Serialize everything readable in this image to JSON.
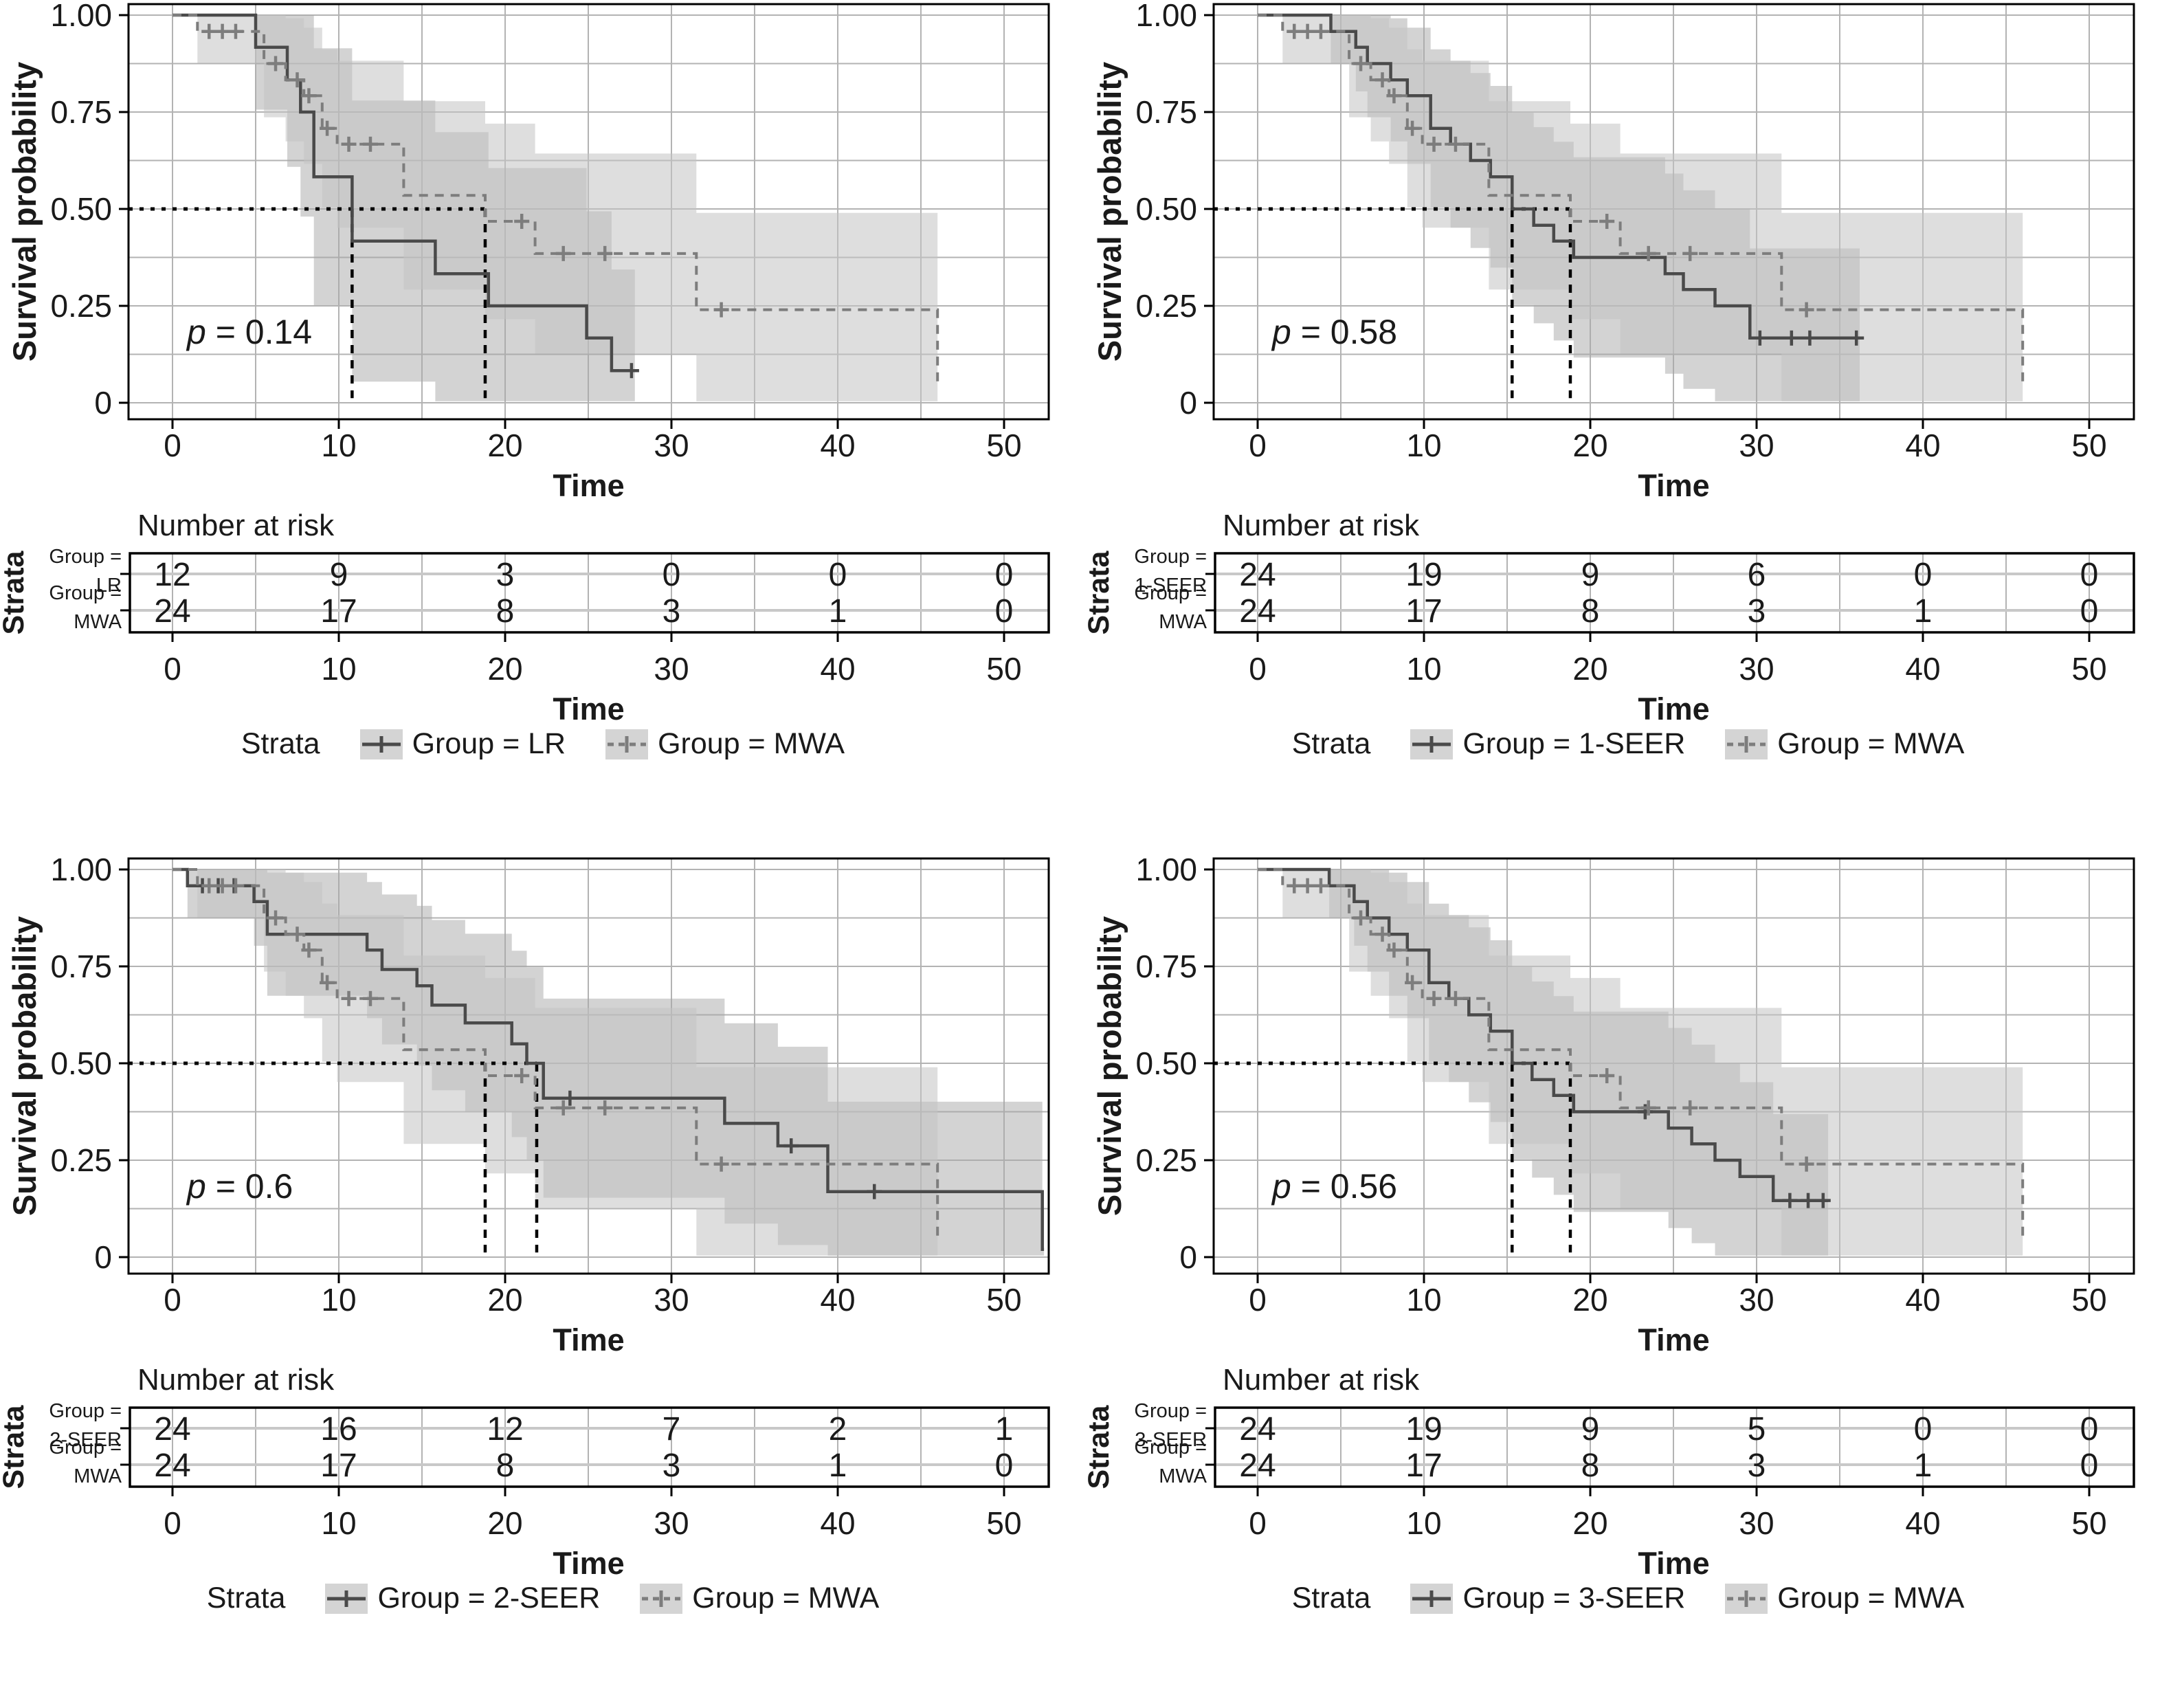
{
  "shared": {
    "ylabel": "Survival probability",
    "xlabel": "Time",
    "risk_title": "Number at risk",
    "strata_axis": "Strata",
    "legend_title": "Strata",
    "x_ticks": [
      0,
      10,
      20,
      30,
      40,
      50
    ],
    "y_ticks": [
      {
        "v": 1,
        "label": "1.00"
      },
      {
        "v": 0.75,
        "label": "0.75"
      },
      {
        "v": 0.5,
        "label": "0.50"
      },
      {
        "v": 0.25,
        "label": "0.25"
      },
      {
        "v": 0,
        "label": "0"
      }
    ],
    "xlim": [
      0,
      52.7
    ],
    "ylim": [
      0,
      1
    ],
    "colors": {
      "solid_line": "#4a4a4a",
      "dashed_line": "#7d7d7d",
      "solid_band": "#a8a8a8",
      "dashed_band": "#c2c2c2",
      "grid": "#b3b3b3",
      "median": "#000000"
    }
  },
  "chart_data": [
    {
      "id": "top-left",
      "type": "line",
      "subtype": "kaplan-meier-survival",
      "p_label": {
        "var": "p",
        "rest": " = 0.14"
      },
      "series": [
        {
          "name": "Group = LR",
          "n": 12,
          "style": "solid",
          "median_time": 10.8,
          "end_time": 27.8,
          "steps": [
            [
              0,
              1
            ],
            [
              5,
              0.917
            ],
            [
              6.9,
              0.833
            ],
            [
              7.7,
              0.75
            ],
            [
              8.5,
              0.583
            ],
            [
              10.8,
              0.417
            ],
            [
              15.8,
              0.333
            ],
            [
              19,
              0.25
            ],
            [
              24.9,
              0.167
            ],
            [
              26.4,
              0.083
            ]
          ],
          "censors": [
            [
              27.6,
              0.083
            ]
          ]
        },
        {
          "name": "Group = MWA",
          "n": 24,
          "style": "dashed",
          "median_time": 18.8,
          "end_time": 46,
          "terminal_drop_to": 0.04,
          "steps": [
            [
              0,
              1
            ],
            [
              1.5,
              0.958
            ],
            [
              5.5,
              0.875
            ],
            [
              6.8,
              0.833
            ],
            [
              7.9,
              0.792
            ],
            [
              9,
              0.708
            ],
            [
              9.9,
              0.667
            ],
            [
              13.9,
              0.535
            ],
            [
              18.8,
              0.468
            ],
            [
              21.8,
              0.385
            ],
            [
              31.5,
              0.24
            ]
          ],
          "censors": [
            [
              2.2,
              0.958
            ],
            [
              3,
              0.958
            ],
            [
              3.8,
              0.958
            ],
            [
              6.2,
              0.875
            ],
            [
              7.5,
              0.833
            ],
            [
              8.2,
              0.792
            ],
            [
              9.3,
              0.708
            ],
            [
              10.6,
              0.667
            ],
            [
              11.9,
              0.667
            ],
            [
              21,
              0.468
            ],
            [
              23.5,
              0.385
            ],
            [
              26,
              0.385
            ],
            [
              33,
              0.24
            ]
          ]
        }
      ],
      "median_ref_y": 0.5,
      "number_at_risk": {
        "times": [
          0,
          10,
          20,
          30,
          40,
          50
        ],
        "rows": [
          {
            "label": [
              "Group =",
              "LR"
            ],
            "counts": [
              12,
              9,
              3,
              0,
              0,
              0
            ]
          },
          {
            "label": [
              "Group =",
              "MWA"
            ],
            "counts": [
              24,
              17,
              8,
              3,
              1,
              0
            ]
          }
        ]
      }
    },
    {
      "id": "top-right",
      "type": "line",
      "subtype": "kaplan-meier-survival",
      "p_label": {
        "var": "p",
        "rest": " = 0.58"
      },
      "series": [
        {
          "name": "Group = 1-SEER",
          "n": 24,
          "style": "solid",
          "median_time": 15.3,
          "end_time": 36.2,
          "steps": [
            [
              0,
              1
            ],
            [
              4.4,
              0.958
            ],
            [
              5.9,
              0.917
            ],
            [
              6.6,
              0.875
            ],
            [
              8,
              0.833
            ],
            [
              9,
              0.792
            ],
            [
              10.4,
              0.708
            ],
            [
              11.6,
              0.667
            ],
            [
              12.8,
              0.625
            ],
            [
              14,
              0.583
            ],
            [
              15.3,
              0.5
            ],
            [
              16.6,
              0.458
            ],
            [
              17.8,
              0.417
            ],
            [
              19,
              0.375
            ],
            [
              24.5,
              0.333
            ],
            [
              25.6,
              0.292
            ],
            [
              27.5,
              0.25
            ],
            [
              29.6,
              0.167
            ]
          ],
          "censors": [
            [
              30.2,
              0.167
            ],
            [
              32.1,
              0.167
            ],
            [
              33.2,
              0.167
            ],
            [
              36,
              0.167
            ]
          ]
        },
        {
          "name": "Group = MWA",
          "n": 24,
          "style": "dashed",
          "median_time": 18.8,
          "end_time": 46,
          "terminal_drop_to": 0.04,
          "steps": [
            [
              0,
              1
            ],
            [
              1.5,
              0.958
            ],
            [
              5.5,
              0.875
            ],
            [
              6.8,
              0.833
            ],
            [
              7.9,
              0.792
            ],
            [
              9,
              0.708
            ],
            [
              9.9,
              0.667
            ],
            [
              13.9,
              0.535
            ],
            [
              18.8,
              0.468
            ],
            [
              21.8,
              0.385
            ],
            [
              31.5,
              0.24
            ]
          ],
          "censors": [
            [
              2.2,
              0.958
            ],
            [
              3,
              0.958
            ],
            [
              3.8,
              0.958
            ],
            [
              6.2,
              0.875
            ],
            [
              7.5,
              0.833
            ],
            [
              8.2,
              0.792
            ],
            [
              9.3,
              0.708
            ],
            [
              10.6,
              0.667
            ],
            [
              11.9,
              0.667
            ],
            [
              21,
              0.468
            ],
            [
              23.5,
              0.385
            ],
            [
              26,
              0.385
            ],
            [
              33,
              0.24
            ]
          ]
        }
      ],
      "median_ref_y": 0.5,
      "number_at_risk": {
        "times": [
          0,
          10,
          20,
          30,
          40,
          50
        ],
        "rows": [
          {
            "label": [
              "Group =",
              "1-SEER"
            ],
            "counts": [
              24,
              19,
              9,
              6,
              0,
              0
            ]
          },
          {
            "label": [
              "Group =",
              "MWA"
            ],
            "counts": [
              24,
              17,
              8,
              3,
              1,
              0
            ]
          }
        ]
      }
    },
    {
      "id": "bottom-left",
      "type": "line",
      "subtype": "kaplan-meier-survival",
      "p_label": {
        "var": "p",
        "rest": " = 0.6"
      },
      "series": [
        {
          "name": "Group = 2-SEER",
          "n": 24,
          "style": "solid",
          "median_time": 21.9,
          "end_time": 52.4,
          "steps": [
            [
              0,
              1
            ],
            [
              0.9,
              0.958
            ],
            [
              4.9,
              0.917
            ],
            [
              5.7,
              0.833
            ],
            [
              11.7,
              0.792
            ],
            [
              12.6,
              0.742
            ],
            [
              14.7,
              0.7
            ],
            [
              15.6,
              0.65
            ],
            [
              17.6,
              0.604
            ],
            [
              20.4,
              0.55
            ],
            [
              21.3,
              0.5
            ],
            [
              22.3,
              0.41
            ],
            [
              33.2,
              0.345
            ],
            [
              36.4,
              0.287
            ],
            [
              39.4,
              0.169
            ],
            [
              52.3,
              0.02
            ]
          ],
          "censors": [
            [
              1.8,
              0.958
            ],
            [
              2.75,
              0.958
            ],
            [
              3.7,
              0.958
            ],
            [
              23.9,
              0.41
            ],
            [
              37.2,
              0.287
            ],
            [
              42.2,
              0.169
            ]
          ]
        },
        {
          "name": "Group = MWA",
          "n": 24,
          "style": "dashed",
          "median_time": 18.8,
          "end_time": 46,
          "terminal_drop_to": 0.04,
          "steps": [
            [
              0,
              1
            ],
            [
              1.5,
              0.958
            ],
            [
              5.5,
              0.875
            ],
            [
              6.8,
              0.833
            ],
            [
              7.9,
              0.792
            ],
            [
              9,
              0.708
            ],
            [
              9.9,
              0.667
            ],
            [
              13.9,
              0.535
            ],
            [
              18.8,
              0.468
            ],
            [
              21.8,
              0.385
            ],
            [
              31.5,
              0.24
            ]
          ],
          "censors": [
            [
              2.2,
              0.958
            ],
            [
              3,
              0.958
            ],
            [
              3.8,
              0.958
            ],
            [
              6.2,
              0.875
            ],
            [
              7.5,
              0.833
            ],
            [
              8.2,
              0.792
            ],
            [
              9.3,
              0.708
            ],
            [
              10.6,
              0.667
            ],
            [
              11.9,
              0.667
            ],
            [
              21,
              0.468
            ],
            [
              23.5,
              0.385
            ],
            [
              26,
              0.385
            ],
            [
              33,
              0.24
            ]
          ]
        }
      ],
      "median_ref_y": 0.5,
      "number_at_risk": {
        "times": [
          0,
          10,
          20,
          30,
          40,
          50
        ],
        "rows": [
          {
            "label": [
              "Group =",
              "2-SEER"
            ],
            "counts": [
              24,
              16,
              12,
              7,
              2,
              1
            ]
          },
          {
            "label": [
              "Group =",
              "MWA"
            ],
            "counts": [
              24,
              17,
              8,
              3,
              1,
              0
            ]
          }
        ]
      }
    },
    {
      "id": "bottom-right",
      "type": "line",
      "subtype": "kaplan-meier-survival",
      "p_label": {
        "var": "p",
        "rest": " = 0.56"
      },
      "series": [
        {
          "name": "Group = 3-SEER",
          "n": 24,
          "style": "solid",
          "median_time": 15.3,
          "end_time": 34.3,
          "steps": [
            [
              0,
              1
            ],
            [
              4.3,
              0.958
            ],
            [
              5.8,
              0.917
            ],
            [
              6.6,
              0.875
            ],
            [
              7.9,
              0.833
            ],
            [
              9,
              0.792
            ],
            [
              10.3,
              0.708
            ],
            [
              11.5,
              0.667
            ],
            [
              12.7,
              0.625
            ],
            [
              14,
              0.583
            ],
            [
              15.3,
              0.5
            ],
            [
              16.5,
              0.458
            ],
            [
              17.8,
              0.417
            ],
            [
              19,
              0.375
            ],
            [
              24.7,
              0.333
            ],
            [
              26.1,
              0.292
            ],
            [
              27.5,
              0.25
            ],
            [
              29,
              0.208
            ],
            [
              31,
              0.146
            ]
          ],
          "censors": [
            [
              23.3,
              0.375
            ],
            [
              32,
              0.146
            ],
            [
              33.1,
              0.146
            ],
            [
              34,
              0.146
            ]
          ]
        },
        {
          "name": "Group = MWA",
          "n": 24,
          "style": "dashed",
          "median_time": 18.8,
          "end_time": 46,
          "terminal_drop_to": 0.04,
          "steps": [
            [
              0,
              1
            ],
            [
              1.5,
              0.958
            ],
            [
              5.5,
              0.875
            ],
            [
              6.8,
              0.833
            ],
            [
              7.9,
              0.792
            ],
            [
              9,
              0.708
            ],
            [
              9.9,
              0.667
            ],
            [
              13.9,
              0.535
            ],
            [
              18.8,
              0.468
            ],
            [
              21.8,
              0.385
            ],
            [
              31.5,
              0.24
            ]
          ],
          "censors": [
            [
              2.2,
              0.958
            ],
            [
              3,
              0.958
            ],
            [
              3.8,
              0.958
            ],
            [
              6.2,
              0.875
            ],
            [
              7.5,
              0.833
            ],
            [
              8.2,
              0.792
            ],
            [
              9.3,
              0.708
            ],
            [
              10.6,
              0.667
            ],
            [
              11.9,
              0.667
            ],
            [
              21,
              0.468
            ],
            [
              23.5,
              0.385
            ],
            [
              26,
              0.385
            ],
            [
              33,
              0.24
            ]
          ]
        }
      ],
      "median_ref_y": 0.5,
      "number_at_risk": {
        "times": [
          0,
          10,
          20,
          30,
          40,
          50
        ],
        "rows": [
          {
            "label": [
              "Group =",
              "3-SEER"
            ],
            "counts": [
              24,
              19,
              9,
              5,
              0,
              0
            ]
          },
          {
            "label": [
              "Group =",
              "MWA"
            ],
            "counts": [
              24,
              17,
              8,
              3,
              1,
              0
            ]
          }
        ]
      }
    }
  ]
}
